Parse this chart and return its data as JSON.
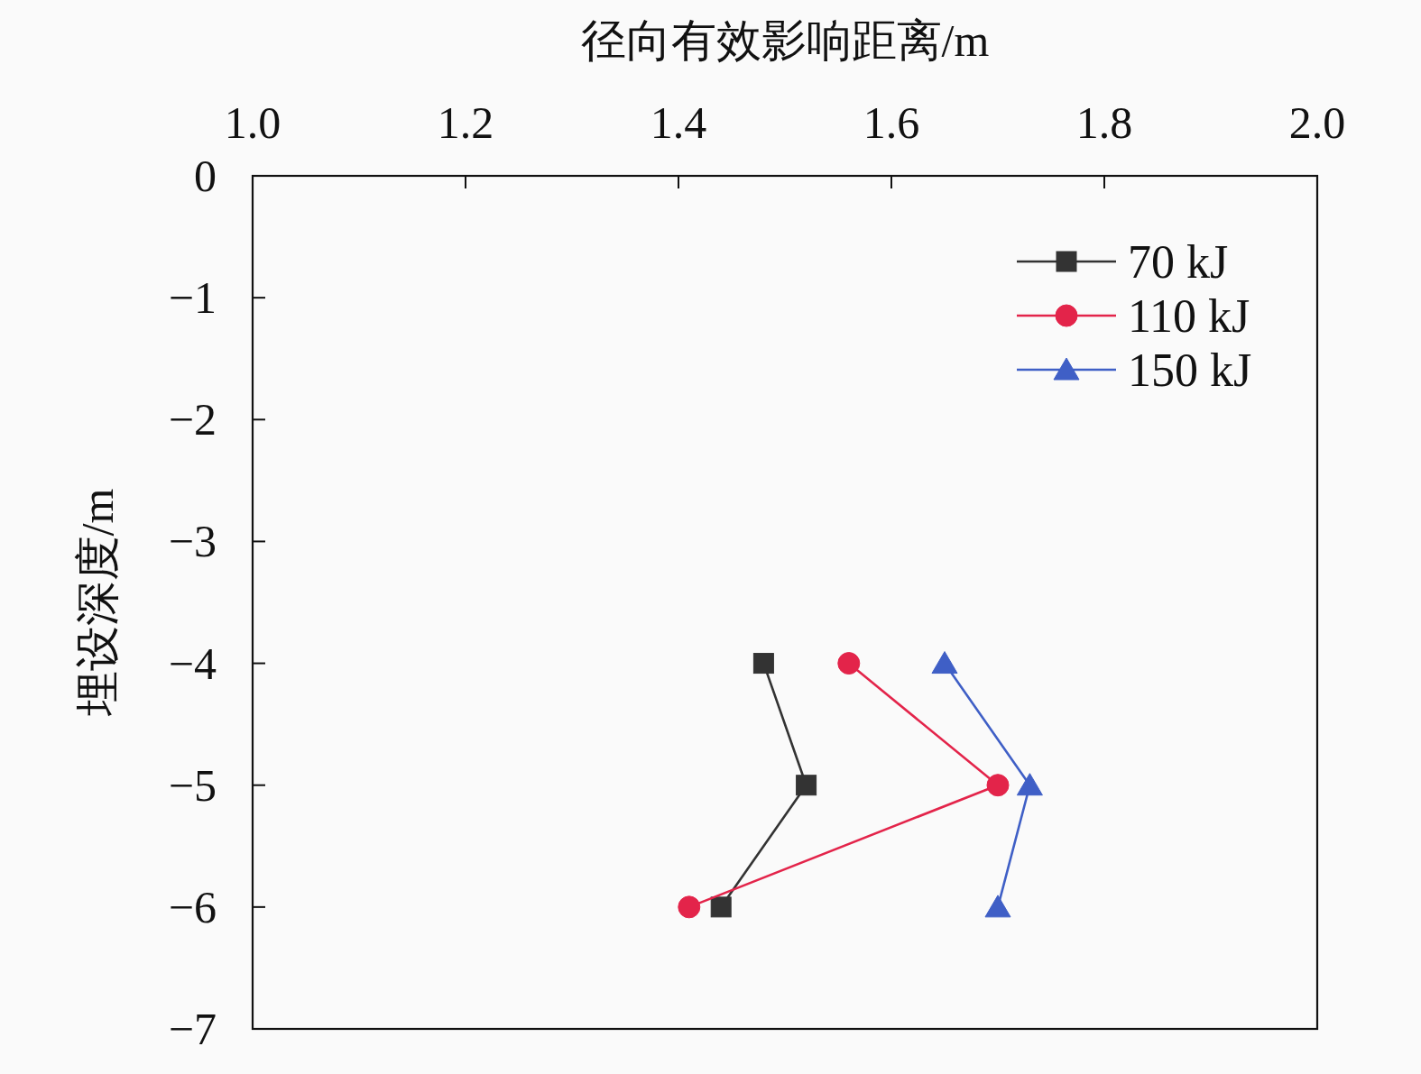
{
  "chart_data": {
    "type": "line",
    "xlabel": "径向有效影响距离/m",
    "ylabel": "埋设深度/m",
    "xlim": [
      1,
      2
    ],
    "xticks": [
      {
        "value": 1,
        "label": "1.0"
      },
      1.2,
      1.4,
      1.6,
      1.8,
      {
        "value": 2,
        "label": "2.0"
      }
    ],
    "ylim": [
      -7,
      0
    ],
    "yticks": [
      0,
      {
        "value": -1,
        "label": "−1"
      },
      {
        "value": -2,
        "label": "−2"
      },
      {
        "value": -3,
        "label": "−3"
      },
      {
        "value": -4,
        "label": "−4"
      },
      {
        "value": -5,
        "label": "−5"
      },
      {
        "value": -6,
        "label": "−6"
      },
      {
        "value": -7,
        "label": "−7"
      }
    ],
    "legend": "top right",
    "line_style": "solid",
    "series": [
      {
        "name": "70 kJ",
        "color": "#333333",
        "marker": "square",
        "x": [
          1.48,
          1.52,
          1.44
        ],
        "values": [
          -4,
          -5,
          -6
        ]
      },
      {
        "name": "110 kJ",
        "color": "#e3244a",
        "marker": "circle",
        "x": [
          1.56,
          1.7,
          1.41
        ],
        "values": [
          -4,
          -5,
          -6
        ]
      },
      {
        "name": "150 kJ",
        "color": "#3f5fc6",
        "marker": "triangle",
        "x": [
          1.65,
          1.73,
          1.7
        ],
        "values": [
          -4,
          -5,
          -6
        ]
      }
    ]
  }
}
